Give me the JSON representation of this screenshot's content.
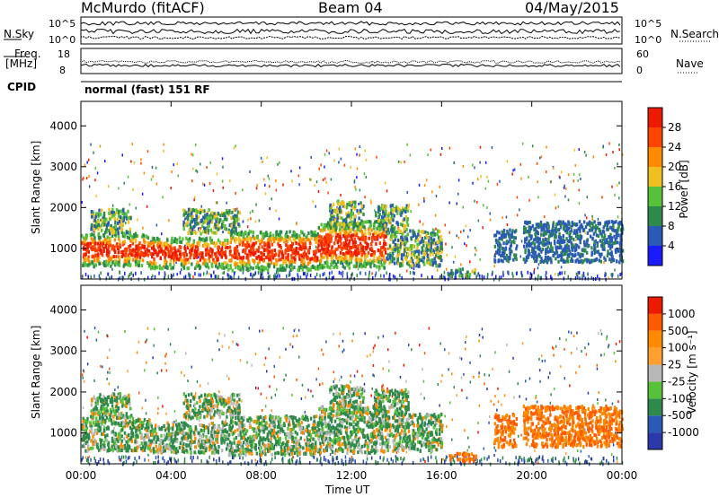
{
  "header": {
    "station": "McMurdo (fitACF)",
    "beam": "Beam 04",
    "date": "04/May/2015"
  },
  "top_panels": {
    "nsky_label": "N.Sky",
    "nsearch_label": "N.Search",
    "nsky_ticks": [
      "10^5",
      "10^0"
    ],
    "nsearch_ticks": [
      "10^5",
      "10^0"
    ],
    "freq_label": "Freq.",
    "freq_unit": "[MHz]",
    "freq_ticks": [
      "18",
      "8"
    ],
    "nave_label": "Nave",
    "nave_ticks": [
      "60",
      "0"
    ],
    "cpid_label": "CPID",
    "cpid_text": "normal (fast) 151 RF"
  },
  "chart_data": [
    {
      "type": "heatmap",
      "name": "power",
      "ylabel": "Slant Range [km]",
      "yticks": [
        "1000",
        "2000",
        "3000",
        "4000"
      ],
      "ylim": [
        250,
        4600
      ],
      "x_ticks": [
        "00:00",
        "04:00",
        "08:00",
        "12:00",
        "16:00",
        "20:00",
        "00:00"
      ],
      "colorbar_label": "Power [dB]",
      "colorbar_ticks": [
        "4",
        "8",
        "12",
        "16",
        "20",
        "24",
        "28"
      ],
      "colors": [
        "#1a1aff",
        "#2a5ab5",
        "#2e8a4a",
        "#55c23a",
        "#f0c020",
        "#ff8a00",
        "#ff4400",
        "#ee1a00"
      ]
    },
    {
      "type": "heatmap",
      "name": "velocity",
      "ylabel": "Slant Range [km]",
      "yticks": [
        "1000",
        "2000",
        "3000",
        "4000"
      ],
      "ylim": [
        250,
        4600
      ],
      "x_ticks": [
        "00:00",
        "04:00",
        "08:00",
        "12:00",
        "16:00",
        "20:00",
        "00:00"
      ],
      "xlabel": "Time UT",
      "colorbar_label": "Velocity [m s⁻¹]",
      "colorbar_ticks": [
        "1000",
        "500",
        "100",
        "25",
        "-25",
        "-100",
        "-500",
        "-1000"
      ],
      "colors": [
        "#2a3aaa",
        "#2a5ab5",
        "#2e8a4a",
        "#55c23a",
        "#b8b8b8",
        "#ffa030",
        "#ff8a00",
        "#ff5a00",
        "#ee1a00"
      ]
    }
  ]
}
